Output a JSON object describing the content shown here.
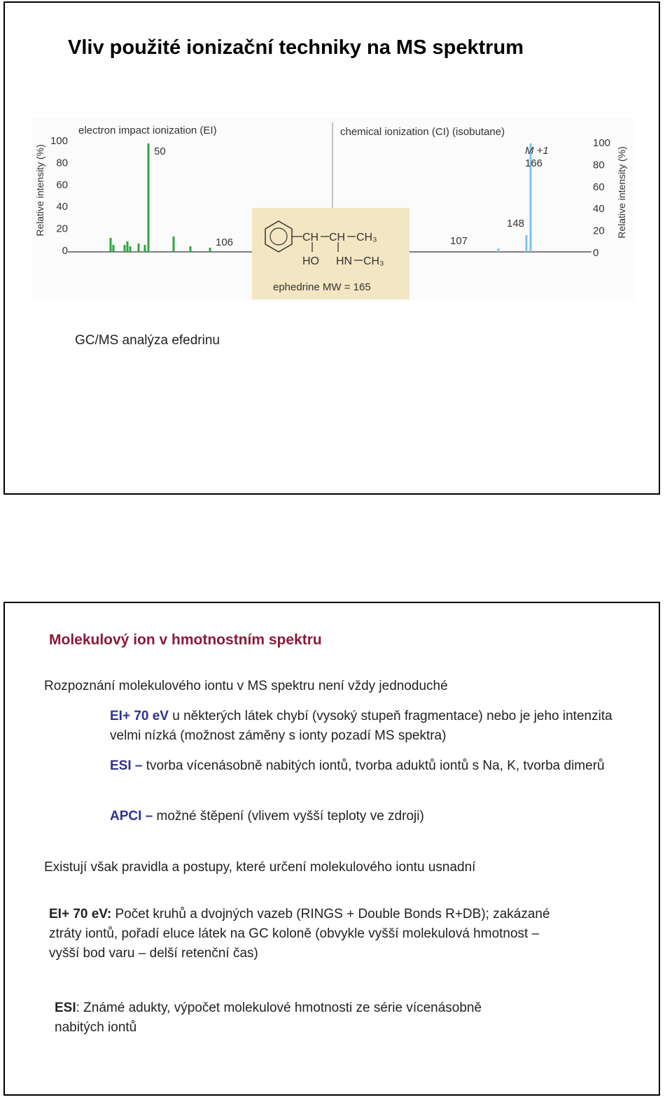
{
  "slide1": {
    "title": "Vliv použité ionizační techniky na MS spektrum",
    "figure": {
      "ei": {
        "title": "electron impact ionization (EI)",
        "axis_label": "Relative intensity (%)",
        "ticks": [
          100,
          80,
          60,
          40,
          20,
          0
        ],
        "peak_labels": [
          "50",
          "106"
        ]
      },
      "ci": {
        "title": "chemical ionization (CI) (isobutane)",
        "axis_label": "Relative intensity (%)",
        "ticks": [
          100,
          80,
          60,
          40,
          20,
          0
        ],
        "peak_labels": [
          "M +1",
          "166",
          "148",
          "107"
        ]
      },
      "structure": {
        "groups": [
          "CH",
          "CH",
          "CH₃",
          "HO",
          "HN",
          "CH₃"
        ],
        "caption": "ephedrine MW = 165"
      }
    },
    "caption": "GC/MS analýza efedrinu"
  },
  "slide2": {
    "heading": "Molekulový ion v hmotnostním spektru",
    "intro": "Rozpoznání molekulového iontu v MS spektru není vždy jednoduché",
    "items": [
      {
        "lead": "EI+ 70 eV",
        "text": " u některých látek chybí (vysoký stupeň fragmentace) nebo je jeho intenzita velmi nízká (možnost záměny s ionty pozadí MS spektra)"
      },
      {
        "lead": "ESI –",
        "text": " tvorba vícenásobně nabitých iontů, tvorba aduktů iontů s Na, K, tvorba dimerů"
      },
      {
        "lead": "APCI –",
        "text": " možné štěpení (vlivem vyšší teploty ve zdroji)"
      }
    ],
    "rules_intro": "Existují však pravidla a postupy, které určení molekulového iontu usnadní",
    "rules": [
      {
        "lead": "EI+ 70 eV:",
        "text": " Počet kruhů a dvojných vazeb (RINGS + Double Bonds R+DB); zakázané ztráty iontů, pořadí eluce látek na GC koloně (obvykle vyšší molekulová hmotnost – vyšší bod varu – delší retenční čas)"
      },
      {
        "lead": "ESI",
        "text": ": Známé adukty, výpočet molekulové hmotnosti ze série vícenásobně nabitých iontů"
      }
    ]
  }
}
